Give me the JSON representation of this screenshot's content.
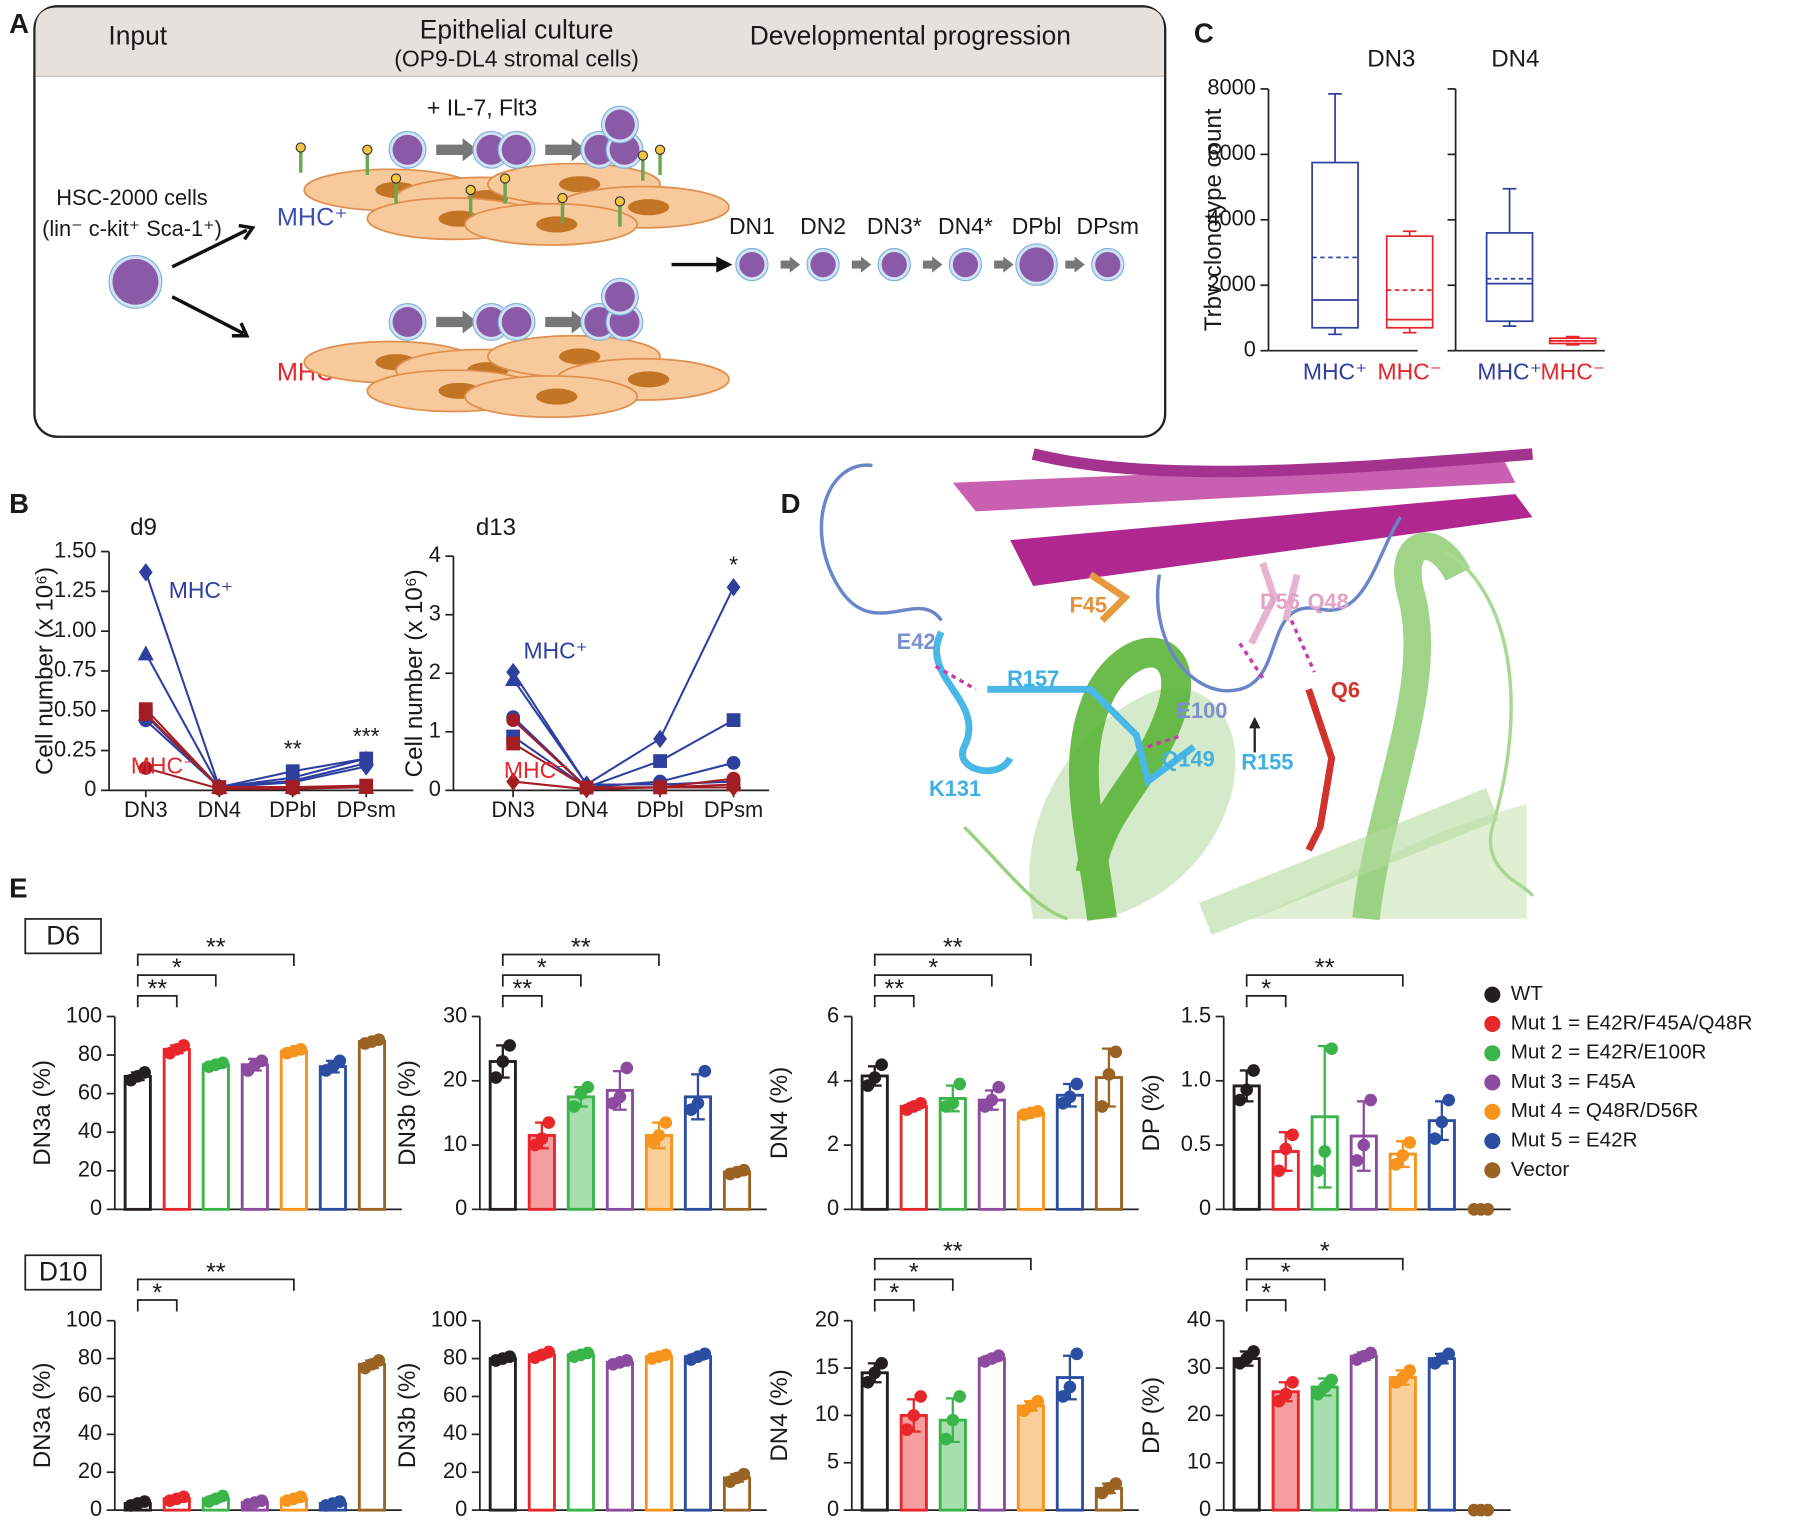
{
  "panel_labels": [
    "A",
    "B",
    "C",
    "D",
    "E"
  ],
  "panel_a": {
    "headers": [
      "Input",
      "Epithelial culture",
      "Developmental progression"
    ],
    "subheader": "(OP9-DL4 stromal cells)",
    "cytokines": "+ IL-7, Flt3",
    "input_name": "HSC-2000 cells",
    "input_markers": "(lin⁻ c-kit⁺ Sca-1⁺)",
    "mhc_pos": "MHC⁺",
    "mhc_neg": "MHC⁻",
    "stages": [
      "DN1",
      "DN2",
      "DN3*",
      "DN4*",
      "DPbl",
      "DPsm"
    ]
  },
  "panel_d": {
    "residues": [
      "E42",
      "F45",
      "D56",
      "Q48",
      "R157",
      "E100",
      "Q6",
      "K131",
      "Q149",
      "R155"
    ],
    "colors": [
      "#7b8fcf",
      "#e3913a",
      "#e2a3c6",
      "#e2a3c6",
      "#3fb0e0",
      "#7b8fcf",
      "#d0322c",
      "#3fb0e0",
      "#3fb0e0",
      "#3fb0e0"
    ]
  },
  "panel_e": {
    "rows": [
      "D6",
      "D10"
    ],
    "legend": [
      {
        "name": "WT",
        "color": "#231f20"
      },
      {
        "name": "Mut 1 = E42R/F45A/Q48R",
        "color": "#e8262b"
      },
      {
        "name": "Mut 2 = E42R/E100R",
        "color": "#3ab54a"
      },
      {
        "name": "Mut 3 = F45A",
        "color": "#8d4b9f"
      },
      {
        "name": "Mut 4 = Q48R/D56R",
        "color": "#f7941d"
      },
      {
        "name": "Mut 5 = E42R",
        "color": "#2b4ea2"
      },
      {
        "name": "Vector",
        "color": "#9a6324"
      }
    ]
  },
  "chart_data": [
    {
      "type": "box",
      "title": "DN3",
      "ylabel": "Trbv clonotype count",
      "categories": [
        "MHC⁺",
        "MHC⁻"
      ],
      "colors": [
        "#2e3f9e",
        "#e3262b"
      ],
      "ylim": [
        0,
        8000
      ],
      "yticks": [
        0,
        2000,
        4000,
        6000,
        8000
      ],
      "tick_labels": true,
      "boxes": [
        {
          "min": 500,
          "q1": 700,
          "median": 1550,
          "q3": 5750,
          "max": 7850,
          "mean": 2850
        },
        {
          "min": 550,
          "q1": 700,
          "median": 950,
          "q3": 3500,
          "max": 3650,
          "mean": 1850
        }
      ]
    },
    {
      "type": "box",
      "title": "DN4",
      "categories": [
        "MHC⁺",
        "MHC⁻"
      ],
      "colors": [
        "#2e3f9e",
        "#e3262b"
      ],
      "ylim": [
        0,
        8000
      ],
      "yticks": [
        0,
        2000,
        4000,
        6000,
        8000
      ],
      "tick_labels": false,
      "boxes": [
        {
          "min": 750,
          "q1": 900,
          "median": 2050,
          "q3": 3600,
          "max": 4950,
          "mean": 2200
        },
        {
          "min": 180,
          "q1": 220,
          "median": 300,
          "q3": 380,
          "max": 430,
          "mean": 300
        }
      ]
    },
    {
      "type": "line",
      "title": "d9",
      "ylabel": "Cell number (x 10⁶)",
      "categories": [
        "DN3",
        "DN4",
        "DPbl",
        "DPsm"
      ],
      "ylim": [
        0,
        1.5
      ],
      "yticks": [
        0,
        0.25,
        {
          "value": 0.5,
          "label": "0.50"
        },
        0.75,
        {
          "value": 1,
          "label": "1.00"
        },
        1.25,
        {
          "value": 1.5,
          "label": "1.50"
        }
      ],
      "series": [
        {
          "color": "#2e3f9e",
          "marker": "diamond",
          "values": [
            1.37,
            0.02,
            0.05,
            0.15
          ]
        },
        {
          "color": "#2e3f9e",
          "marker": "triangle",
          "values": [
            0.86,
            0.02,
            0.08,
            0.2
          ]
        },
        {
          "color": "#2e3f9e",
          "marker": "square",
          "values": [
            0.47,
            0.02,
            0.12,
            0.2
          ]
        },
        {
          "color": "#2e3f9e",
          "marker": "circle",
          "values": [
            0.44,
            0.02,
            0.06,
            0.17
          ]
        },
        {
          "color": "#a31d24",
          "marker": "square",
          "values": [
            0.51,
            0.02,
            0.02,
            0.03
          ]
        },
        {
          "color": "#a31d24",
          "marker": "triangle",
          "values": [
            0.48,
            0.02,
            0.02,
            0.02
          ]
        },
        {
          "color": "#a31d24",
          "marker": "circle",
          "values": [
            0.14,
            0.01,
            0.01,
            0.02
          ]
        }
      ],
      "annotations": [
        {
          "text": "MHC⁺",
          "color": "#2e3f9e"
        },
        {
          "text": "MHC⁻",
          "color": "#e3262b"
        }
      ],
      "significance": [
        null,
        null,
        "**",
        "***"
      ]
    },
    {
      "type": "line",
      "title": "d13",
      "ylabel": "Cell number (x 10⁶)",
      "categories": [
        "DN3",
        "DN4",
        "DPbl",
        "DPsm"
      ],
      "ylim": [
        0,
        4
      ],
      "yticks": [
        0,
        1,
        2,
        3,
        4
      ],
      "series": [
        {
          "color": "#2e3f9e",
          "marker": "diamond",
          "values": [
            2.02,
            0.1,
            0.88,
            3.47
          ]
        },
        {
          "color": "#2e3f9e",
          "marker": "square",
          "values": [
            0.92,
            0.05,
            0.5,
            1.2
          ]
        },
        {
          "color": "#2e3f9e",
          "marker": "circle",
          "values": [
            1.25,
            0.05,
            0.15,
            0.47
          ]
        },
        {
          "color": "#2e3f9e",
          "marker": "triangle",
          "values": [
            1.9,
            0.1,
            0.1,
            0.15
          ]
        },
        {
          "color": "#a31d24",
          "marker": "circle",
          "values": [
            1.2,
            0.05,
            0.05,
            0.2
          ]
        },
        {
          "color": "#a31d24",
          "marker": "square",
          "values": [
            0.8,
            0.05,
            0.05,
            0.1
          ]
        },
        {
          "color": "#a31d24",
          "marker": "diamond",
          "values": [
            0.15,
            0.02,
            0.05,
            0.05
          ]
        }
      ],
      "annotations": [
        {
          "text": "MHC⁺",
          "color": "#2e3f9e"
        },
        {
          "text": "MHC⁻",
          "color": "#e3262b"
        }
      ],
      "significance": [
        null,
        null,
        null,
        "*"
      ]
    },
    {
      "type": "bar",
      "ylabel": "DN3a (%)",
      "ylim": [
        0,
        100
      ],
      "yticks": [
        0,
        20,
        40,
        60,
        80,
        100
      ],
      "values": [
        69,
        83,
        75,
        75,
        82,
        74,
        87
      ],
      "errors": [
        2,
        2,
        1,
        3,
        1,
        3,
        1
      ],
      "points": [
        [
          67,
          69,
          71
        ],
        [
          81,
          83,
          85
        ],
        [
          74,
          75,
          76
        ],
        [
          72,
          75,
          77
        ],
        [
          81,
          82,
          83
        ],
        [
          72,
          74,
          77
        ],
        [
          86,
          87,
          88
        ]
      ],
      "brackets": [
        {
          "from": 0,
          "to": 1,
          "label": "**"
        },
        {
          "from": 0,
          "to": 2,
          "label": "*"
        },
        {
          "from": 0,
          "to": 4,
          "label": "**"
        }
      ]
    },
    {
      "type": "bar",
      "ylabel": "DN3b (%)",
      "ylim": [
        0,
        30
      ],
      "yticks": [
        0,
        10,
        20,
        30
      ],
      "values": [
        23,
        11.5,
        17.5,
        18.5,
        11.5,
        17.5,
        5.8
      ],
      "errors": [
        2.5,
        2,
        1.5,
        3,
        2,
        3.5,
        0.5
      ],
      "points": [
        [
          20.5,
          23,
          25.5
        ],
        [
          10,
          11,
          13.5
        ],
        [
          16,
          18,
          19
        ],
        [
          16.5,
          17.5,
          22
        ],
        [
          10.5,
          11.5,
          13.5
        ],
        [
          15.5,
          16.5,
          21.5
        ],
        [
          5.5,
          5.8,
          6.1
        ]
      ],
      "filled": [
        1,
        2,
        4
      ],
      "brackets": [
        {
          "from": 0,
          "to": 1,
          "label": "**"
        },
        {
          "from": 0,
          "to": 2,
          "label": "*"
        },
        {
          "from": 0,
          "to": 4,
          "label": "**"
        }
      ]
    },
    {
      "type": "bar",
      "ylabel": "DN4 (%)",
      "ylim": [
        0,
        6
      ],
      "yticks": [
        0,
        2,
        4,
        6
      ],
      "values": [
        4.15,
        3.2,
        3.45,
        3.4,
        3.0,
        3.55,
        4.1
      ],
      "errors": [
        0.3,
        0.1,
        0.4,
        0.3,
        0.05,
        0.35,
        0.9
      ],
      "points": [
        [
          3.85,
          4.1,
          4.5
        ],
        [
          3.1,
          3.2,
          3.3
        ],
        [
          3.2,
          3.3,
          3.9
        ],
        [
          3.2,
          3.4,
          3.8
        ],
        [
          2.95,
          3.0,
          3.05
        ],
        [
          3.3,
          3.5,
          3.9
        ],
        [
          3.2,
          4.2,
          4.9
        ]
      ],
      "brackets": [
        {
          "from": 0,
          "to": 1,
          "label": "**"
        },
        {
          "from": 0,
          "to": 3,
          "label": "*"
        },
        {
          "from": 0,
          "to": 4,
          "label": "**"
        }
      ]
    },
    {
      "type": "bar",
      "ylabel": "DP (%)",
      "ylim": [
        0,
        1.5
      ],
      "yticks": [
        0,
        0.5,
        {
          "value": 1,
          "label": "1.0"
        },
        1.5
      ],
      "values": [
        0.96,
        0.45,
        0.72,
        0.57,
        0.43,
        0.69,
        0
      ],
      "errors": [
        0.12,
        0.15,
        0.55,
        0.27,
        0.1,
        0.15,
        0
      ],
      "points": [
        [
          0.85,
          0.93,
          1.08
        ],
        [
          0.3,
          0.47,
          0.58
        ],
        [
          0.3,
          0.45,
          1.25
        ],
        [
          0.38,
          0.5,
          0.85
        ],
        [
          0.35,
          0.42,
          0.52
        ],
        [
          0.55,
          0.68,
          0.85
        ],
        [
          0,
          0,
          0
        ]
      ],
      "brackets": [
        {
          "from": 0,
          "to": 1,
          "label": "*"
        },
        {
          "from": 0,
          "to": 4,
          "label": "**"
        }
      ]
    },
    {
      "type": "bar",
      "ylabel": "DN3a (%)",
      "ylim": [
        0,
        100
      ],
      "yticks": [
        0,
        20,
        40,
        60,
        80,
        100
      ],
      "values": [
        3.5,
        6,
        6,
        4,
        6,
        3.5,
        77
      ],
      "errors": [
        1,
        1,
        1.5,
        1,
        1,
        1,
        2
      ],
      "points": [
        [
          2.5,
          3.5,
          4.5
        ],
        [
          5,
          6,
          7
        ],
        [
          4.5,
          6,
          7.5
        ],
        [
          3,
          4,
          5
        ],
        [
          5,
          6,
          7
        ],
        [
          2.5,
          3.5,
          4.5
        ],
        [
          75,
          77,
          79
        ]
      ],
      "brackets": [
        {
          "from": 0,
          "to": 1,
          "label": "*"
        },
        {
          "from": 0,
          "to": 4,
          "label": "**"
        }
      ]
    },
    {
      "type": "bar",
      "ylabel": "DN3b (%)",
      "ylim": [
        0,
        100
      ],
      "yticks": [
        0,
        20,
        40,
        60,
        80,
        100
      ],
      "values": [
        80,
        82,
        82,
        78,
        81,
        81,
        17
      ],
      "errors": [
        1,
        1.5,
        1,
        1,
        1,
        1.5,
        2
      ],
      "points": [
        [
          79,
          80,
          81
        ],
        [
          80.5,
          82,
          83.5
        ],
        [
          81,
          82,
          83
        ],
        [
          77,
          78,
          79
        ],
        [
          80,
          81,
          82
        ],
        [
          79.5,
          81,
          82.5
        ],
        [
          15,
          17,
          19
        ]
      ]
    },
    {
      "type": "bar",
      "ylabel": "DN4 (%)",
      "ylim": [
        0,
        20
      ],
      "yticks": [
        0,
        5,
        10,
        15,
        20
      ],
      "values": [
        14.5,
        10,
        9.5,
        16,
        11,
        14,
        2.3
      ],
      "errors": [
        1,
        1.7,
        2.3,
        0.3,
        0.5,
        2.3,
        0.5
      ],
      "points": [
        [
          13.5,
          14.5,
          15.5
        ],
        [
          8.5,
          10,
          12
        ],
        [
          7.5,
          9.5,
          12
        ],
        [
          15.7,
          16,
          16.3
        ],
        [
          10.5,
          11,
          11.5
        ],
        [
          12,
          13,
          16.5
        ],
        [
          1.8,
          2.3,
          2.8
        ]
      ],
      "filled": [
        1,
        2,
        4
      ],
      "brackets": [
        {
          "from": 0,
          "to": 1,
          "label": "*"
        },
        {
          "from": 0,
          "to": 2,
          "label": "*"
        },
        {
          "from": 0,
          "to": 4,
          "label": "**"
        }
      ]
    },
    {
      "type": "bar",
      "ylabel": "DP (%)",
      "ylim": [
        0,
        40
      ],
      "yticks": [
        0,
        10,
        20,
        30,
        40
      ],
      "values": [
        32,
        25,
        26,
        32.5,
        28,
        32,
        0
      ],
      "errors": [
        1.5,
        2,
        1.8,
        0.8,
        1.5,
        1,
        0
      ],
      "points": [
        [
          31,
          32,
          33.5
        ],
        [
          23,
          24.5,
          27
        ],
        [
          24.5,
          26,
          27.5
        ],
        [
          31.8,
          32.5,
          33.2
        ],
        [
          27,
          28,
          29.5
        ],
        [
          31,
          32,
          33
        ],
        [
          0,
          0,
          0
        ]
      ],
      "filled": [
        1,
        2,
        4
      ],
      "brackets": [
        {
          "from": 0,
          "to": 1,
          "label": "*"
        },
        {
          "from": 0,
          "to": 2,
          "label": "*"
        },
        {
          "from": 0,
          "to": 4,
          "label": "*"
        }
      ]
    }
  ]
}
